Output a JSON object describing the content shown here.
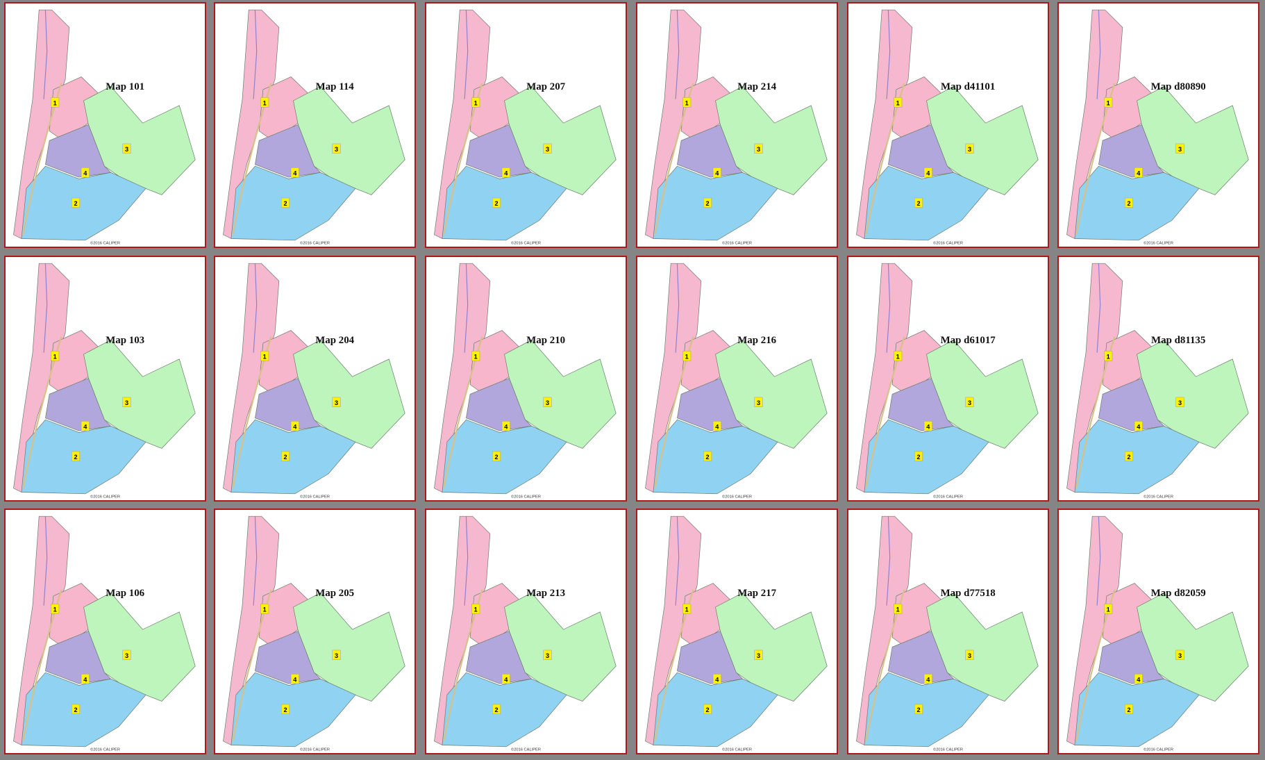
{
  "maps": [
    {
      "title": "Map 101",
      "districts": [
        "1",
        "2",
        "3",
        "4"
      ],
      "credit": "©2016 CALIPER"
    },
    {
      "title": "Map 114",
      "districts": [
        "1",
        "2",
        "3",
        "4"
      ],
      "credit": "©2016 CALIPER"
    },
    {
      "title": "Map 207",
      "districts": [
        "1",
        "2",
        "3",
        "4"
      ],
      "credit": "©2016 CALIPER"
    },
    {
      "title": "Map 214",
      "districts": [
        "1",
        "2",
        "3",
        "4"
      ],
      "credit": "©2016 CALIPER"
    },
    {
      "title": "Map d41101",
      "districts": [
        "1",
        "2",
        "3",
        "4"
      ],
      "credit": "©2016 CALIPER"
    },
    {
      "title": "Map d80890",
      "districts": [
        "1",
        "2",
        "3",
        "4"
      ],
      "credit": "©2016 CALIPER"
    },
    {
      "title": "Map 103",
      "districts": [
        "1",
        "2",
        "3",
        "4"
      ],
      "credit": "©2016 CALIPER"
    },
    {
      "title": "Map 204",
      "districts": [
        "1",
        "2",
        "3",
        "4"
      ],
      "credit": "©2016 CALIPER"
    },
    {
      "title": "Map 210",
      "districts": [
        "1",
        "2",
        "3",
        "4"
      ],
      "credit": "©2016 CALIPER"
    },
    {
      "title": "Map 216",
      "districts": [
        "1",
        "2",
        "3",
        "4"
      ],
      "credit": "©2016 CALIPER"
    },
    {
      "title": "Map d61017",
      "districts": [
        "1",
        "2",
        "3",
        "4"
      ],
      "credit": "©2016 CALIPER"
    },
    {
      "title": "Map d81135",
      "districts": [
        "1",
        "2",
        "3",
        "4"
      ],
      "credit": "©2016 CALIPER"
    },
    {
      "title": "Map 106",
      "districts": [
        "1",
        "2",
        "3",
        "4"
      ],
      "credit": "©2016 CALIPER"
    },
    {
      "title": "Map 205",
      "districts": [
        "1",
        "2",
        "3",
        "4"
      ],
      "credit": "©2016 CALIPER"
    },
    {
      "title": "Map 213",
      "districts": [
        "1",
        "2",
        "3",
        "4"
      ],
      "credit": "©2016 CALIPER"
    },
    {
      "title": "Map 217",
      "districts": [
        "1",
        "2",
        "3",
        "4"
      ],
      "credit": "©2016 CALIPER"
    },
    {
      "title": "Map d77518",
      "districts": [
        "1",
        "2",
        "3",
        "4"
      ],
      "credit": "©2016 CALIPER"
    },
    {
      "title": "Map d82059",
      "districts": [
        "1",
        "2",
        "3",
        "4"
      ],
      "credit": "©2016 CALIPER"
    }
  ]
}
